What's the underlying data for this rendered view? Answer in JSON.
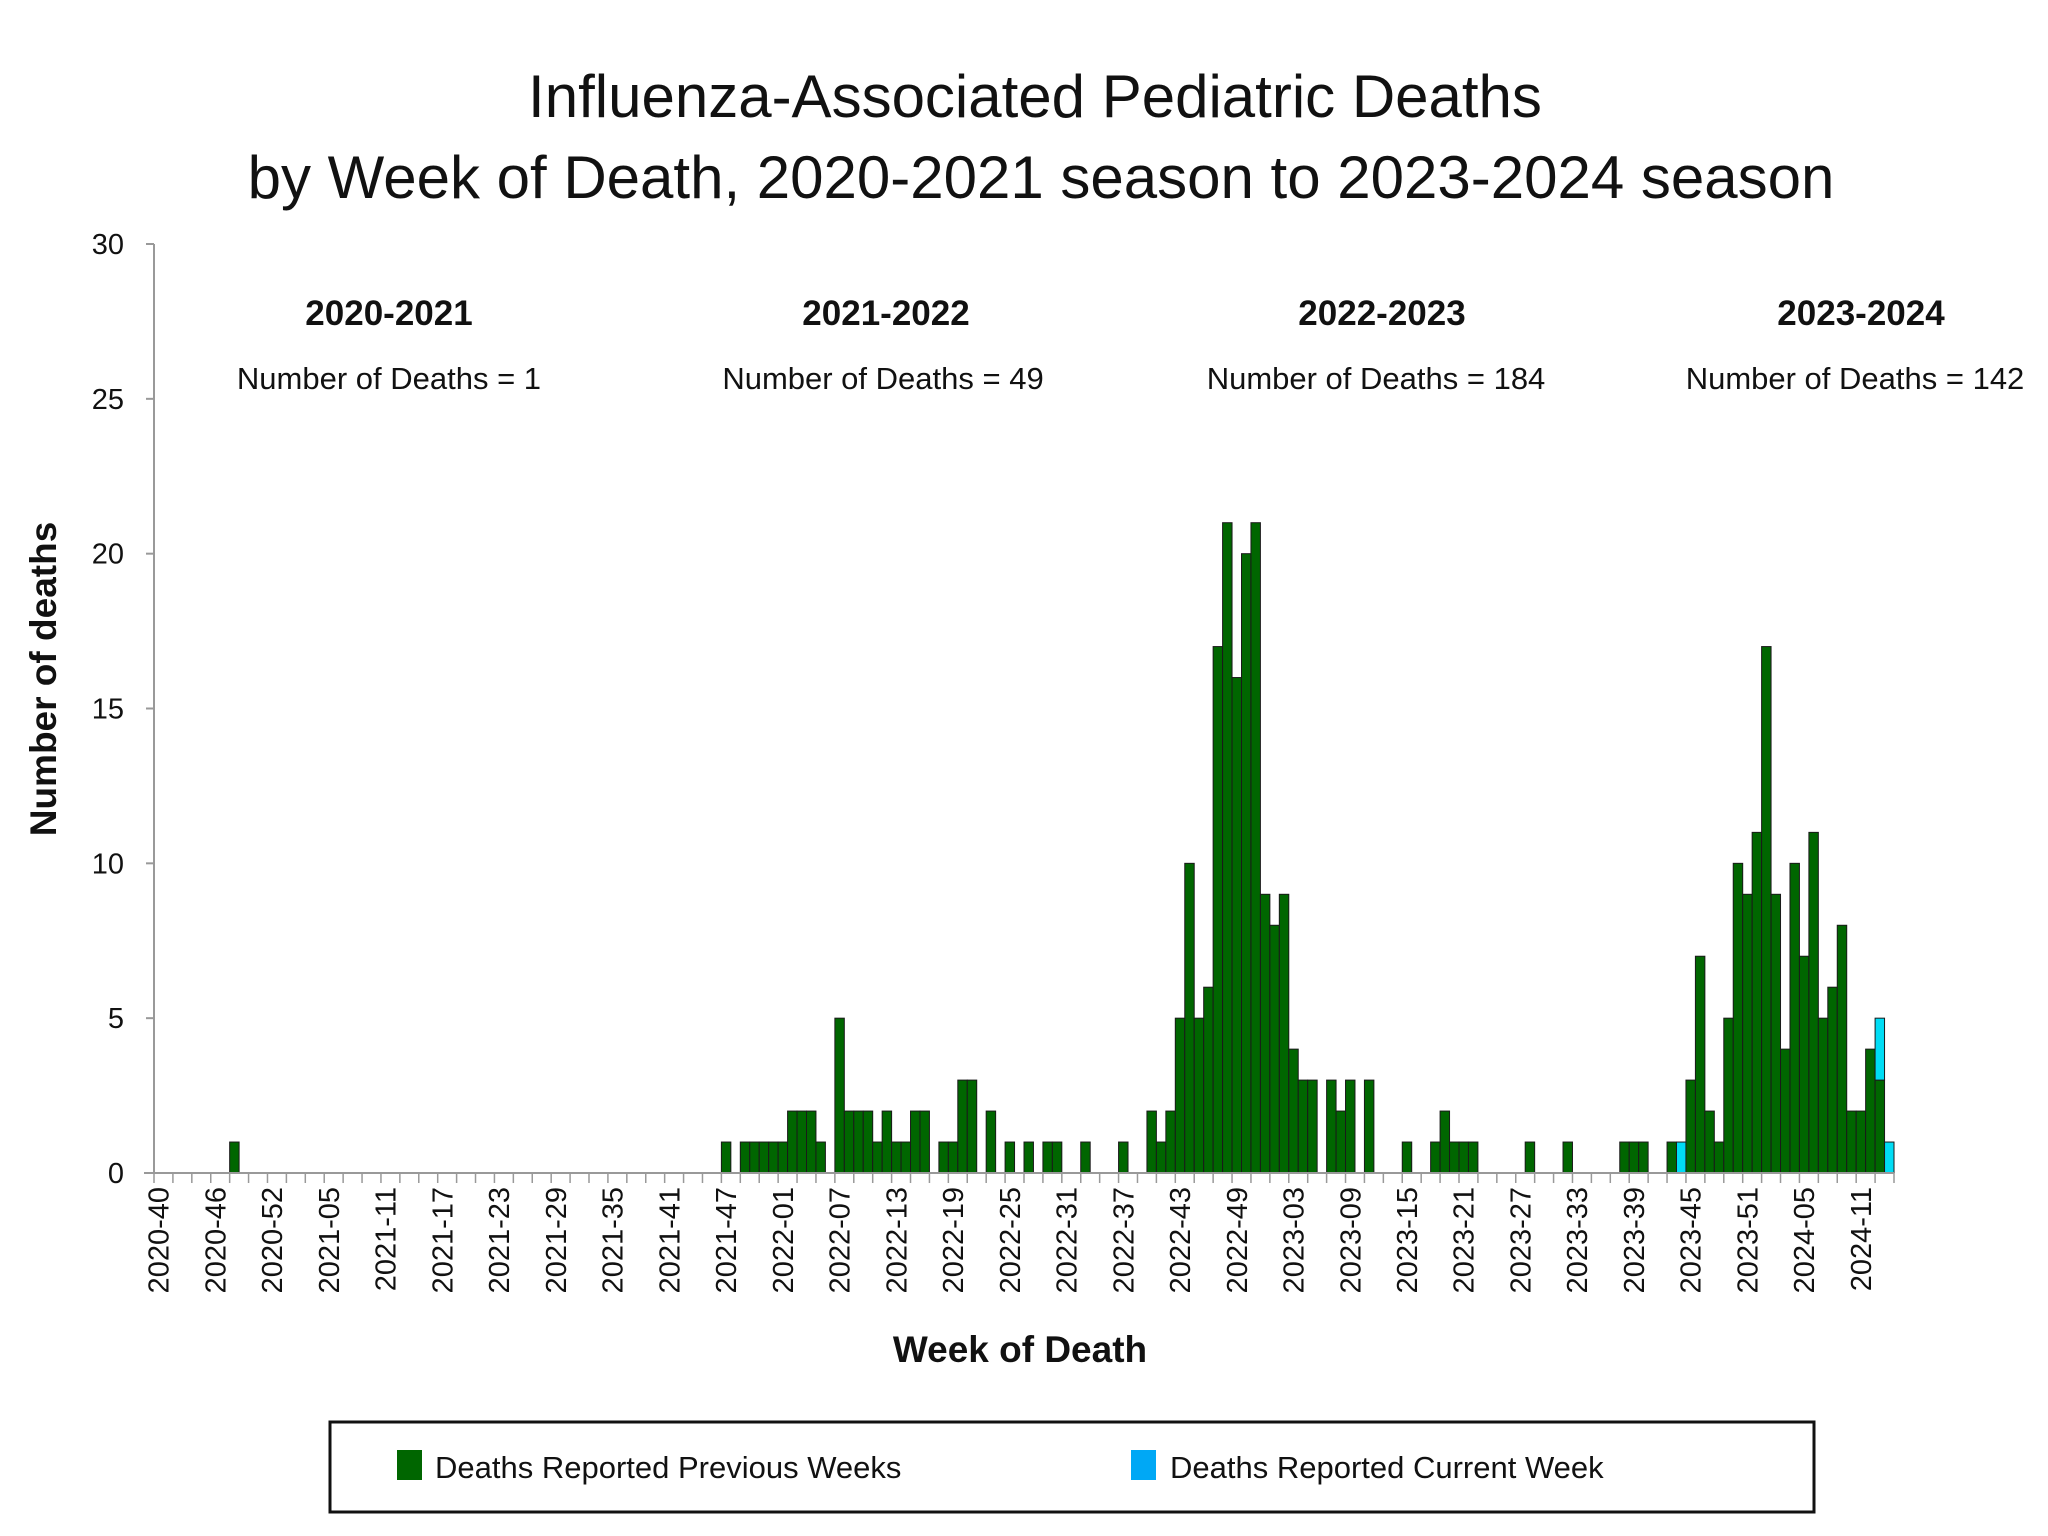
{
  "chart_data": {
    "type": "bar",
    "stacked": true,
    "title": [
      "Influenza-Associated Pediatric Deaths",
      "by Week of Death, 2020-2021 season to 2023-2024 season"
    ],
    "xlabel": "Week of Death",
    "ylabel": "Number of deaths",
    "ylim": [
      0,
      30
    ],
    "y_ticks": [
      "0",
      "5",
      "10",
      "15",
      "20",
      "25",
      "30"
    ],
    "x_tick_every": 6,
    "grid": false,
    "legend_position": "bottom",
    "seasons": [
      {
        "label": "2020-2021",
        "count_text": "Number of Deaths = 1"
      },
      {
        "label": "2021-2022",
        "count_text": "Number of Deaths = 49"
      },
      {
        "label": "2022-2023",
        "count_text": "Number of Deaths = 184"
      },
      {
        "label": "2023-2024",
        "count_text": "Number of Deaths = 142"
      }
    ],
    "categories": [
      "2020-40",
      "2020-41",
      "2020-42",
      "2020-43",
      "2020-44",
      "2020-45",
      "2020-46",
      "2020-47",
      "2020-48",
      "2020-49",
      "2020-50",
      "2020-51",
      "2020-52",
      "2020-53",
      "2021-01",
      "2021-02",
      "2021-03",
      "2021-04",
      "2021-05",
      "2021-06",
      "2021-07",
      "2021-08",
      "2021-09",
      "2021-10",
      "2021-11",
      "2021-12",
      "2021-13",
      "2021-14",
      "2021-15",
      "2021-16",
      "2021-17",
      "2021-18",
      "2021-19",
      "2021-20",
      "2021-21",
      "2021-22",
      "2021-23",
      "2021-24",
      "2021-25",
      "2021-26",
      "2021-27",
      "2021-28",
      "2021-29",
      "2021-30",
      "2021-31",
      "2021-32",
      "2021-33",
      "2021-34",
      "2021-35",
      "2021-36",
      "2021-37",
      "2021-38",
      "2021-39",
      "2021-40",
      "2021-41",
      "2021-42",
      "2021-43",
      "2021-44",
      "2021-45",
      "2021-46",
      "2021-47",
      "2021-48",
      "2021-49",
      "2021-50",
      "2021-51",
      "2021-52",
      "2022-01",
      "2022-02",
      "2022-03",
      "2022-04",
      "2022-05",
      "2022-06",
      "2022-07",
      "2022-08",
      "2022-09",
      "2022-10",
      "2022-11",
      "2022-12",
      "2022-13",
      "2022-14",
      "2022-15",
      "2022-16",
      "2022-17",
      "2022-18",
      "2022-19",
      "2022-20",
      "2022-21",
      "2022-22",
      "2022-23",
      "2022-24",
      "2022-25",
      "2022-26",
      "2022-27",
      "2022-28",
      "2022-29",
      "2022-30",
      "2022-31",
      "2022-32",
      "2022-33",
      "2022-34",
      "2022-35",
      "2022-36",
      "2022-37",
      "2022-38",
      "2022-39",
      "2022-40",
      "2022-41",
      "2022-42",
      "2022-43",
      "2022-44",
      "2022-45",
      "2022-46",
      "2022-47",
      "2022-48",
      "2022-49",
      "2022-50",
      "2022-51",
      "2022-52",
      "2023-01",
      "2023-02",
      "2023-03",
      "2023-04",
      "2023-05",
      "2023-06",
      "2023-07",
      "2023-08",
      "2023-09",
      "2023-10",
      "2023-11",
      "2023-12",
      "2023-13",
      "2023-14",
      "2023-15",
      "2023-16",
      "2023-17",
      "2023-18",
      "2023-19",
      "2023-20",
      "2023-21",
      "2023-22",
      "2023-23",
      "2023-24",
      "2023-25",
      "2023-26",
      "2023-27",
      "2023-28",
      "2023-29",
      "2023-30",
      "2023-31",
      "2023-32",
      "2023-33",
      "2023-34",
      "2023-35",
      "2023-36",
      "2023-37",
      "2023-38",
      "2023-39",
      "2023-40",
      "2023-41",
      "2023-42",
      "2023-43",
      "2023-44",
      "2023-45",
      "2023-46",
      "2023-47",
      "2023-48",
      "2023-49",
      "2023-50",
      "2023-51",
      "2023-52",
      "2024-01",
      "2024-02",
      "2024-03",
      "2024-04",
      "2024-05",
      "2024-06",
      "2024-07",
      "2024-08",
      "2024-09",
      "2024-10",
      "2024-11",
      "2024-12",
      "2024-13",
      "2024-14"
    ],
    "series": [
      {
        "name": "Deaths Reported Previous Weeks",
        "color": "#006600",
        "values": [
          0,
          0,
          0,
          0,
          0,
          0,
          0,
          0,
          1,
          0,
          0,
          0,
          0,
          0,
          0,
          0,
          0,
          0,
          0,
          0,
          0,
          0,
          0,
          0,
          0,
          0,
          0,
          0,
          0,
          0,
          0,
          0,
          0,
          0,
          0,
          0,
          0,
          0,
          0,
          0,
          0,
          0,
          0,
          0,
          0,
          0,
          0,
          0,
          0,
          0,
          0,
          0,
          0,
          0,
          0,
          0,
          0,
          0,
          0,
          0,
          1,
          0,
          1,
          1,
          1,
          1,
          1,
          2,
          2,
          2,
          1,
          0,
          5,
          2,
          2,
          2,
          1,
          2,
          1,
          1,
          2,
          2,
          0,
          1,
          1,
          3,
          3,
          0,
          2,
          0,
          1,
          0,
          1,
          0,
          1,
          1,
          0,
          0,
          1,
          0,
          0,
          0,
          1,
          0,
          0,
          2,
          1,
          2,
          5,
          10,
          5,
          6,
          17,
          21,
          16,
          20,
          21,
          9,
          8,
          9,
          4,
          3,
          3,
          0,
          3,
          2,
          3,
          0,
          3,
          0,
          0,
          0,
          1,
          0,
          0,
          1,
          2,
          1,
          1,
          1,
          0,
          0,
          0,
          0,
          0,
          1,
          0,
          0,
          0,
          1,
          0,
          0,
          0,
          0,
          0,
          1,
          1,
          1,
          0,
          0,
          1,
          0,
          3,
          7,
          2,
          1,
          5,
          10,
          9,
          11,
          17,
          9,
          4,
          10,
          7,
          11,
          5,
          6,
          8,
          2,
          2,
          4,
          3,
          0
        ]
      },
      {
        "name": "Deaths Reported Current Week",
        "color": "#00ddf5",
        "legend_color": "#00a8f5",
        "values": [
          0,
          0,
          0,
          0,
          0,
          0,
          0,
          0,
          0,
          0,
          0,
          0,
          0,
          0,
          0,
          0,
          0,
          0,
          0,
          0,
          0,
          0,
          0,
          0,
          0,
          0,
          0,
          0,
          0,
          0,
          0,
          0,
          0,
          0,
          0,
          0,
          0,
          0,
          0,
          0,
          0,
          0,
          0,
          0,
          0,
          0,
          0,
          0,
          0,
          0,
          0,
          0,
          0,
          0,
          0,
          0,
          0,
          0,
          0,
          0,
          0,
          0,
          0,
          0,
          0,
          0,
          0,
          0,
          0,
          0,
          0,
          0,
          0,
          0,
          0,
          0,
          0,
          0,
          0,
          0,
          0,
          0,
          0,
          0,
          0,
          0,
          0,
          0,
          0,
          0,
          0,
          0,
          0,
          0,
          0,
          0,
          0,
          0,
          0,
          0,
          0,
          0,
          0,
          0,
          0,
          0,
          0,
          0,
          0,
          0,
          0,
          0,
          0,
          0,
          0,
          0,
          0,
          0,
          0,
          0,
          0,
          0,
          0,
          0,
          0,
          0,
          0,
          0,
          0,
          0,
          0,
          0,
          0,
          0,
          0,
          0,
          0,
          0,
          0,
          0,
          0,
          0,
          0,
          0,
          0,
          0,
          0,
          0,
          0,
          0,
          0,
          0,
          0,
          0,
          0,
          0,
          0,
          0,
          0,
          0,
          0,
          1,
          0,
          0,
          0,
          0,
          0,
          0,
          0,
          0,
          0,
          0,
          0,
          0,
          0,
          0,
          0,
          0,
          0,
          0,
          0,
          0,
          2,
          1
        ]
      }
    ]
  }
}
